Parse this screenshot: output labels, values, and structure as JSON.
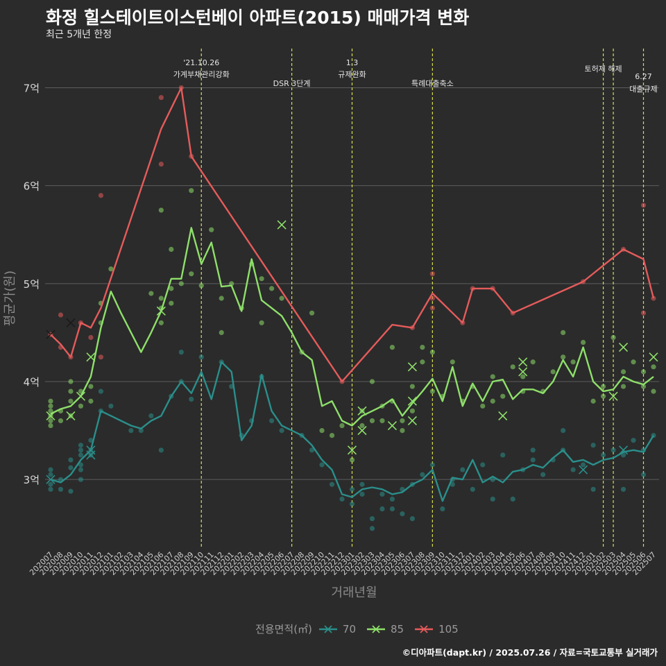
{
  "header": {
    "title": "화정 힐스테이트이스턴베이 아파트(2015) 매매가격 변화",
    "subtitle": "최근 5개년 한정"
  },
  "footer": {
    "credit": "©디아파트(dapt.kr) / 2025.07.26 / 자료=국토교통부 실거래가"
  },
  "legend": {
    "title": "전용면적(㎡)",
    "items": [
      "70",
      "85",
      "105"
    ]
  },
  "colors": {
    "background": "#2b2b2b",
    "grid": "#5e5e5e",
    "s70": "#2a8f8b",
    "s85": "#8ee06a",
    "s105": "#e65b5b",
    "event": "#d8e04a"
  },
  "chart_data": {
    "type": "line",
    "title": "화정 힐스테이트이스턴베이 아파트(2015) 매매가격 변화",
    "subtitle": "최근 5개년 한정",
    "xlabel": "거래년월",
    "ylabel": "평균가(원)",
    "ylim": [
      2.3,
      7.4
    ],
    "yticks": [
      3,
      4,
      5,
      6,
      7
    ],
    "ytick_labels": [
      "3억",
      "4억",
      "5억",
      "6억",
      "7억"
    ],
    "grid": true,
    "legend_position": "bottom",
    "categories": [
      "202007",
      "202008",
      "202009",
      "202010",
      "202011",
      "202012",
      "202101",
      "202102",
      "202103",
      "202104",
      "202105",
      "202106",
      "202107",
      "202108",
      "202109",
      "202110",
      "202111",
      "202112",
      "202201",
      "202202",
      "202203",
      "202204",
      "202205",
      "202206",
      "202207",
      "202208",
      "202209",
      "202210",
      "202211",
      "202212",
      "202301",
      "202302",
      "202303",
      "202304",
      "202305",
      "202306",
      "202307",
      "202308",
      "202309",
      "202310",
      "202311",
      "202312",
      "202401",
      "202402",
      "202403",
      "202404",
      "202405",
      "202406",
      "202407",
      "202408",
      "202409",
      "202410",
      "202411",
      "202412",
      "202501",
      "202502",
      "202503",
      "202504",
      "202505",
      "202506",
      "202507"
    ],
    "series": [
      {
        "name": "70",
        "values": [
          3.0,
          2.97,
          3.05,
          3.2,
          3.3,
          3.7,
          3.65,
          3.6,
          3.55,
          3.52,
          3.6,
          3.65,
          3.85,
          4.0,
          3.88,
          4.1,
          3.82,
          4.2,
          4.1,
          3.4,
          3.55,
          4.07,
          3.7,
          3.55,
          3.5,
          3.45,
          3.35,
          3.2,
          3.1,
          2.85,
          2.82,
          2.9,
          2.92,
          2.9,
          2.85,
          2.87,
          2.95,
          3.0,
          3.1,
          2.78,
          3.02,
          3.0,
          3.2,
          2.97,
          3.03,
          2.97,
          3.08,
          3.1,
          3.15,
          3.12,
          3.22,
          3.3,
          3.18,
          3.2,
          3.15,
          3.2,
          3.22,
          3.28,
          3.3,
          3.28,
          3.45
        ]
      },
      {
        "name": "85",
        "values": [
          3.67,
          3.72,
          3.75,
          3.85,
          4.05,
          4.55,
          4.92,
          4.7,
          4.5,
          4.3,
          4.5,
          4.72,
          5.05,
          5.05,
          5.57,
          5.2,
          5.42,
          4.97,
          4.98,
          4.72,
          5.25,
          4.83,
          4.75,
          4.67,
          4.5,
          4.3,
          4.22,
          3.75,
          3.8,
          3.6,
          3.55,
          3.65,
          3.7,
          3.75,
          3.82,
          3.65,
          3.78,
          3.9,
          4.03,
          3.8,
          4.15,
          3.75,
          3.98,
          3.8,
          4.0,
          4.02,
          3.82,
          3.92,
          3.92,
          3.88,
          4.0,
          4.22,
          4.05,
          4.35,
          4.0,
          3.9,
          3.92,
          4.05,
          4.0,
          3.97,
          4.05
        ]
      },
      {
        "name": "105",
        "values": [
          4.48,
          4.38,
          4.25,
          4.6,
          4.55,
          4.75,
          null,
          null,
          null,
          null,
          null,
          6.58,
          null,
          7.0,
          6.3,
          null,
          null,
          null,
          null,
          null,
          null,
          null,
          null,
          null,
          null,
          null,
          null,
          null,
          null,
          4.0,
          null,
          null,
          null,
          null,
          4.58,
          null,
          4.55,
          null,
          4.9,
          null,
          null,
          4.6,
          4.95,
          null,
          4.95,
          null,
          4.7,
          null,
          null,
          null,
          null,
          null,
          null,
          5.02,
          null,
          null,
          null,
          5.35,
          null,
          5.25,
          4.85
        ]
      }
    ],
    "scatter": {
      "70": [
        [
          0,
          2.95
        ],
        [
          0,
          3.1
        ],
        [
          0,
          2.9
        ],
        [
          0,
          3.05
        ],
        [
          1,
          2.9
        ],
        [
          1,
          3.0
        ],
        [
          2,
          3.12
        ],
        [
          2,
          3.2
        ],
        [
          2,
          2.88
        ],
        [
          3,
          3.1
        ],
        [
          3,
          3.25
        ],
        [
          3,
          3.35
        ],
        [
          3,
          3.0
        ],
        [
          3,
          3.15
        ],
        [
          3,
          3.3
        ],
        [
          4,
          3.25
        ],
        [
          4,
          3.4
        ],
        [
          4,
          3.3
        ],
        [
          5,
          3.9
        ],
        [
          5,
          3.7
        ],
        [
          6,
          3.75
        ],
        [
          8,
          3.5
        ],
        [
          9,
          3.5
        ],
        [
          10,
          3.65
        ],
        [
          11,
          3.3
        ],
        [
          12,
          3.85
        ],
        [
          13,
          4.0
        ],
        [
          13,
          4.3
        ],
        [
          14,
          3.82
        ],
        [
          15,
          4.25
        ],
        [
          17,
          4.2
        ],
        [
          18,
          3.95
        ],
        [
          19,
          3.45
        ],
        [
          20,
          3.6
        ],
        [
          21,
          4.05
        ],
        [
          22,
          3.6
        ],
        [
          23,
          3.5
        ],
        [
          25,
          3.45
        ],
        [
          26,
          3.3
        ],
        [
          27,
          3.15
        ],
        [
          28,
          2.95
        ],
        [
          29,
          2.8
        ],
        [
          30,
          2.9
        ],
        [
          30,
          2.75
        ],
        [
          31,
          2.85
        ],
        [
          31,
          2.95
        ],
        [
          32,
          2.6
        ],
        [
          32,
          2.5
        ],
        [
          33,
          2.85
        ],
        [
          33,
          2.7
        ],
        [
          34,
          2.7
        ],
        [
          34,
          2.8
        ],
        [
          35,
          2.9
        ],
        [
          35,
          2.65
        ],
        [
          36,
          2.6
        ],
        [
          36,
          2.95
        ],
        [
          37,
          3.05
        ],
        [
          38,
          3.15
        ],
        [
          39,
          2.7
        ],
        [
          40,
          2.95
        ],
        [
          40,
          3.0
        ],
        [
          41,
          3.1
        ],
        [
          42,
          2.9
        ],
        [
          43,
          3.15
        ],
        [
          44,
          2.8
        ],
        [
          44,
          3.0
        ],
        [
          45,
          3.25
        ],
        [
          46,
          2.8
        ],
        [
          47,
          3.1
        ],
        [
          48,
          3.2
        ],
        [
          48,
          3.3
        ],
        [
          49,
          3.05
        ],
        [
          50,
          3.2
        ],
        [
          51,
          3.5
        ],
        [
          51,
          3.3
        ],
        [
          52,
          3.1
        ],
        [
          53,
          3.15
        ],
        [
          54,
          2.9
        ],
        [
          54,
          3.35
        ],
        [
          55,
          3.25
        ],
        [
          56,
          3.3
        ],
        [
          57,
          2.9
        ],
        [
          57,
          3.25
        ],
        [
          58,
          3.4
        ],
        [
          59,
          3.05
        ],
        [
          59,
          3.3
        ],
        [
          60,
          3.45
        ]
      ],
      "85": [
        [
          0,
          3.55
        ],
        [
          0,
          3.65
        ],
        [
          0,
          3.75
        ],
        [
          0,
          3.8
        ],
        [
          0,
          3.6
        ],
        [
          0,
          3.7
        ],
        [
          1,
          3.6
        ],
        [
          1,
          3.7
        ],
        [
          2,
          3.8
        ],
        [
          2,
          3.9
        ],
        [
          2,
          3.65
        ],
        [
          2,
          4.0
        ],
        [
          3,
          3.75
        ],
        [
          3,
          3.9
        ],
        [
          4,
          3.8
        ],
        [
          4,
          3.95
        ],
        [
          5,
          4.8
        ],
        [
          5,
          4.6
        ],
        [
          6,
          5.15
        ],
        [
          10,
          4.9
        ],
        [
          11,
          4.6
        ],
        [
          11,
          4.75
        ],
        [
          11,
          4.85
        ],
        [
          11,
          5.75
        ],
        [
          12,
          5.35
        ],
        [
          12,
          4.95
        ],
        [
          12,
          4.8
        ],
        [
          13,
          5.0
        ],
        [
          14,
          5.95
        ],
        [
          14,
          5.1
        ],
        [
          15,
          4.98
        ],
        [
          16,
          5.55
        ],
        [
          17,
          4.5
        ],
        [
          17,
          4.85
        ],
        [
          18,
          5.0
        ],
        [
          19,
          4.75
        ],
        [
          20,
          5.2
        ],
        [
          21,
          4.6
        ],
        [
          21,
          5.05
        ],
        [
          22,
          4.95
        ],
        [
          23,
          4.85
        ],
        [
          25,
          4.3
        ],
        [
          26,
          4.7
        ],
        [
          27,
          3.5
        ],
        [
          28,
          3.45
        ],
        [
          29,
          3.55
        ],
        [
          30,
          3.2
        ],
        [
          31,
          3.55
        ],
        [
          31,
          3.7
        ],
        [
          32,
          4.0
        ],
        [
          32,
          3.6
        ],
        [
          33,
          3.75
        ],
        [
          33,
          3.6
        ],
        [
          34,
          3.8
        ],
        [
          34,
          4.35
        ],
        [
          35,
          3.6
        ],
        [
          35,
          3.5
        ],
        [
          36,
          3.95
        ],
        [
          36,
          3.7
        ],
        [
          37,
          4.35
        ],
        [
          37,
          4.2
        ],
        [
          38,
          4.3
        ],
        [
          38,
          3.9
        ],
        [
          39,
          3.85
        ],
        [
          40,
          4.2
        ],
        [
          41,
          3.8
        ],
        [
          42,
          3.95
        ],
        [
          43,
          3.75
        ],
        [
          44,
          3.8
        ],
        [
          44,
          4.05
        ],
        [
          45,
          3.85
        ],
        [
          46,
          4.15
        ],
        [
          47,
          4.05
        ],
        [
          47,
          3.9
        ],
        [
          48,
          4.2
        ],
        [
          49,
          3.9
        ],
        [
          50,
          4.1
        ],
        [
          51,
          4.5
        ],
        [
          51,
          4.25
        ],
        [
          52,
          4.2
        ],
        [
          53,
          4.4
        ],
        [
          54,
          3.8
        ],
        [
          55,
          3.85
        ],
        [
          55,
          3.95
        ],
        [
          56,
          4.45
        ],
        [
          57,
          4.1
        ],
        [
          57,
          3.95
        ],
        [
          58,
          4.2
        ],
        [
          59,
          3.95
        ],
        [
          59,
          4.1
        ],
        [
          60,
          3.9
        ],
        [
          60,
          4.15
        ]
      ],
      "105": [
        [
          0,
          4.48
        ],
        [
          1,
          4.68
        ],
        [
          1,
          4.35
        ],
        [
          2,
          4.25
        ],
        [
          3,
          4.6
        ],
        [
          4,
          4.45
        ],
        [
          5,
          5.9
        ],
        [
          5,
          4.25
        ],
        [
          11,
          6.9
        ],
        [
          11,
          6.22
        ],
        [
          13,
          7.0
        ],
        [
          14,
          6.3
        ],
        [
          29,
          4.0
        ],
        [
          36,
          4.55
        ],
        [
          38,
          5.1
        ],
        [
          38,
          4.85
        ],
        [
          38,
          4.75
        ],
        [
          41,
          4.6
        ],
        [
          42,
          4.95
        ],
        [
          44,
          4.95
        ],
        [
          46,
          4.7
        ],
        [
          53,
          5.02
        ],
        [
          57,
          5.35
        ],
        [
          59,
          5.8
        ],
        [
          59,
          4.7
        ],
        [
          60,
          4.85
        ]
      ],
      "cancelled": {
        "70": [
          [
            0,
            3.0
          ],
          [
            4,
            3.25
          ],
          [
            4,
            3.3
          ],
          [
            53,
            3.1
          ],
          [
            57,
            3.3
          ]
        ],
        "85": [
          [
            0,
            3.65
          ],
          [
            2,
            3.65
          ],
          [
            3,
            3.85
          ],
          [
            4,
            4.25
          ],
          [
            11,
            4.72
          ],
          [
            23,
            5.6
          ],
          [
            30,
            3.3
          ],
          [
            31,
            3.5
          ],
          [
            31,
            3.7
          ],
          [
            34,
            3.55
          ],
          [
            36,
            4.15
          ],
          [
            36,
            3.6
          ],
          [
            36,
            3.8
          ],
          [
            45,
            3.65
          ],
          [
            47,
            4.2
          ],
          [
            47,
            4.1
          ],
          [
            57,
            4.35
          ],
          [
            56,
            3.85
          ],
          [
            60,
            4.25
          ]
        ],
        "105": [
          [
            0,
            4.48
          ],
          [
            2,
            4.6
          ]
        ]
      }
    },
    "annotations": [
      {
        "x": 15.0,
        "lines": [
          "'21.10.26",
          "가계부채관리강화"
        ]
      },
      {
        "x": 24.0,
        "lines": [
          "DSR 3단계"
        ]
      },
      {
        "x": 30.0,
        "lines": [
          "1.3",
          "규제완화"
        ]
      },
      {
        "x": 38.0,
        "lines": [
          "특례대출축소"
        ]
      },
      {
        "x": 55.0,
        "lines": [
          "토허제 해제"
        ]
      },
      {
        "x": 56.0,
        "lines": []
      },
      {
        "x": 59.0,
        "lines": [
          "6.27",
          "대출규제"
        ]
      }
    ]
  }
}
